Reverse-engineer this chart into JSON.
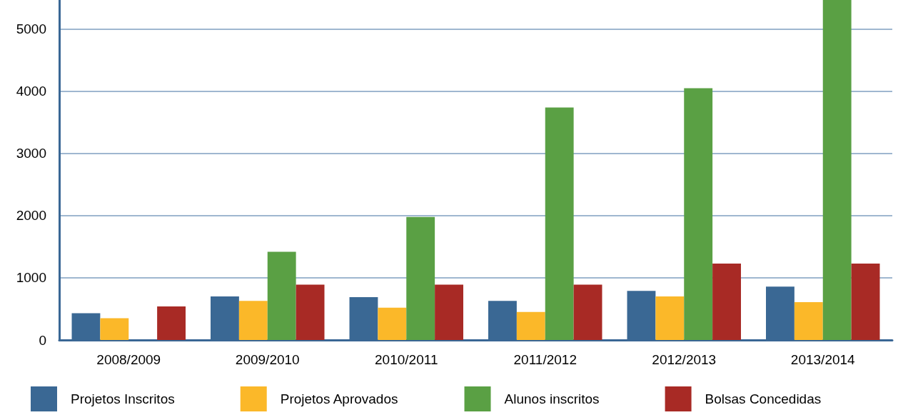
{
  "chart_data": {
    "type": "bar",
    "categories": [
      "2008/2009",
      "2009/2010",
      "2010/2011",
      "2011/2012",
      "2012/2013",
      "2013/2014"
    ],
    "series": [
      {
        "name": "Projetos Inscritos",
        "color": "#3a6894",
        "values": [
          430,
          700,
          690,
          630,
          790,
          860
        ]
      },
      {
        "name": "Projetos Aprovados",
        "color": "#fbb829",
        "values": [
          350,
          630,
          520,
          450,
          700,
          610
        ]
      },
      {
        "name": "Alunos inscritos",
        "color": "#5aa044",
        "values": [
          null,
          1420,
          1980,
          3740,
          4050,
          5470
        ]
      },
      {
        "name": "Bolsas Concedidas",
        "color": "#a82a25",
        "values": [
          540,
          890,
          890,
          890,
          1230,
          1230
        ]
      }
    ],
    "ylim": [
      0,
      5470
    ],
    "yticks": [
      0,
      1000,
      2000,
      3000,
      4000,
      5000
    ],
    "grid": "y",
    "legend": "bottom"
  }
}
